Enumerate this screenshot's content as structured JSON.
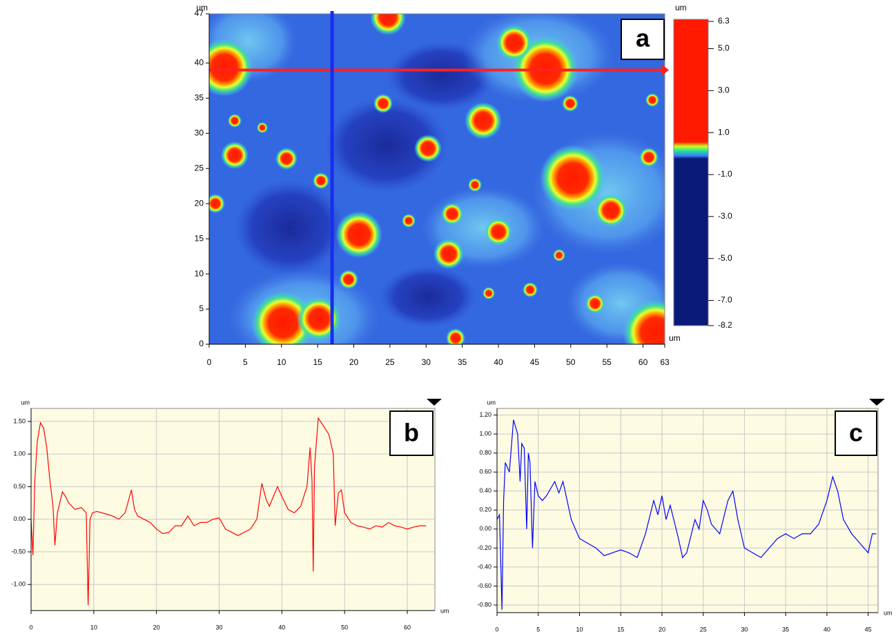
{
  "chart_data": [
    {
      "type": "heatmap",
      "label": "a",
      "x_unit": "um",
      "y_unit": "um",
      "xlim": [
        0,
        63
      ],
      "xticks": [
        0,
        5,
        10,
        15,
        20,
        25,
        30,
        35,
        40,
        45,
        50,
        55,
        60,
        63
      ],
      "ylim": [
        0,
        47
      ],
      "yticks": [
        0,
        5,
        10,
        15,
        20,
        25,
        30,
        35,
        40,
        47
      ],
      "grid": false,
      "lines": [
        {
          "color": "#ff2020",
          "y": 39
        },
        {
          "color": "#1a2cf0",
          "x": 17
        }
      ],
      "colorbar": {
        "unit": "um",
        "lim": [
          -8.2,
          6.3
        ],
        "ticks": [
          6.3,
          {
            "value": 5,
            "label": "5.0"
          },
          {
            "value": 3,
            "label": "3.0"
          },
          {
            "value": 1,
            "label": "1.0"
          },
          {
            "value": -1,
            "label": "-1.0"
          },
          {
            "value": -3,
            "label": "-3.0"
          },
          {
            "value": -5,
            "label": "-5.0"
          },
          {
            "value": -7,
            "label": "-7.0"
          },
          -8.2
        ]
      }
    },
    {
      "type": "line",
      "label": "b",
      "x_unit": "um",
      "y_unit": "um",
      "xlim": [
        0,
        64.4
      ],
      "xticks": [
        0,
        10,
        20,
        30,
        40,
        50,
        60
      ],
      "ylim": [
        -1.4,
        1.7
      ],
      "yticks": [
        {
          "value": -1,
          "label": "-1.00"
        },
        {
          "value": -0.5,
          "label": "-0.50"
        },
        {
          "value": 0,
          "label": "0.00"
        },
        {
          "value": 0.5,
          "label": "0.50"
        },
        {
          "value": 1,
          "label": "1.00"
        },
        {
          "value": 1.5,
          "label": "1.50"
        }
      ],
      "grid": true,
      "series": [
        {
          "color": "#ff0000",
          "x": [
            0,
            0.3,
            0.6,
            1,
            1.5,
            2,
            2.5,
            3,
            3.5,
            3.8,
            4.2,
            5,
            5.5,
            6,
            7,
            8,
            8.8,
            9.1,
            9.4,
            9.8,
            10.5,
            12,
            13,
            14,
            15,
            16,
            16.5,
            17,
            18,
            19,
            20,
            21,
            22,
            23,
            24,
            25,
            26,
            27,
            28,
            29,
            30,
            31,
            32,
            33,
            34,
            35,
            36,
            36.8,
            37.5,
            38,
            39.3,
            40,
            41,
            42,
            43,
            44,
            44.5,
            44.8,
            45,
            45.2,
            45.8,
            46.5,
            47.5,
            48.2,
            48.5,
            49,
            49.5,
            50,
            51,
            52,
            53,
            54,
            55,
            56,
            57,
            58,
            59,
            60,
            61,
            62,
            63
          ],
          "values": [
            0,
            -0.55,
            0.6,
            1.2,
            1.48,
            1.4,
            1.1,
            0.6,
            0.2,
            -0.4,
            0.1,
            0.42,
            0.35,
            0.25,
            0.15,
            0.18,
            0.1,
            -1.32,
            0,
            0.1,
            0.12,
            0.08,
            0.05,
            0,
            0.1,
            0.45,
            0.15,
            0.05,
            0,
            -0.05,
            -0.15,
            -0.22,
            -0.2,
            -0.1,
            -0.1,
            0.05,
            -0.1,
            -0.05,
            -0.05,
            0,
            0.02,
            -0.15,
            -0.2,
            -0.25,
            -0.2,
            -0.15,
            0,
            0.55,
            0.3,
            0.2,
            0.5,
            0.35,
            0.15,
            0.1,
            0.2,
            0.5,
            1.1,
            0.6,
            -0.8,
            0.8,
            1.55,
            1.45,
            1.3,
            1,
            -0.1,
            0.4,
            0.45,
            0.1,
            -0.05,
            -0.1,
            -0.12,
            -0.15,
            -0.1,
            -0.12,
            -0.05,
            -0.1,
            -0.12,
            -0.15,
            -0.12,
            -0.1,
            -0.1
          ]
        }
      ]
    },
    {
      "type": "line",
      "label": "c",
      "x_unit": "um",
      "y_unit": "um",
      "xlim": [
        0,
        46.2
      ],
      "xticks": [
        0,
        5,
        10,
        15,
        20,
        25,
        30,
        35,
        40,
        45
      ],
      "ylim": [
        -0.88,
        1.27
      ],
      "yticks": [
        {
          "value": -0.8,
          "label": "-0.80"
        },
        {
          "value": -0.6,
          "label": "-0.60"
        },
        {
          "value": -0.4,
          "label": "-0.40"
        },
        {
          "value": -0.2,
          "label": "-0.20"
        },
        {
          "value": 0,
          "label": "0.00"
        },
        {
          "value": 0.2,
          "label": "0.20"
        },
        {
          "value": 0.4,
          "label": "0.40"
        },
        {
          "value": 0.6,
          "label": "0.60"
        },
        {
          "value": 0.8,
          "label": "0.80"
        },
        {
          "value": 1,
          "label": "1.00"
        },
        {
          "value": 1.2,
          "label": "1.20"
        }
      ],
      "grid": true,
      "series": [
        {
          "color": "#0000ff",
          "x": [
            0,
            0.3,
            0.5,
            0.6,
            0.8,
            1,
            1.5,
            2,
            2.5,
            2.8,
            3,
            3.3,
            3.6,
            3.8,
            4,
            4.3,
            4.6,
            5,
            5.5,
            6,
            7,
            7.5,
            8,
            8.5,
            9,
            10,
            11,
            12,
            13,
            14,
            15,
            16,
            17,
            18,
            19,
            19.5,
            20,
            20.5,
            21,
            22,
            22.5,
            23,
            24,
            24.5,
            25,
            25.5,
            26,
            27,
            28,
            28.6,
            29.2,
            30,
            31,
            32,
            33,
            34,
            35,
            36,
            37,
            38,
            39,
            40,
            40.7,
            41.3,
            42,
            43,
            44,
            45,
            45.5,
            46
          ],
          "values": [
            0.1,
            0.15,
            -0.5,
            -0.85,
            0.3,
            0.7,
            0.6,
            1.15,
            1,
            0.5,
            0.9,
            0.85,
            0,
            0.8,
            0.7,
            -0.2,
            0.5,
            0.35,
            0.3,
            0.35,
            0.5,
            0.38,
            0.5,
            0.3,
            0.1,
            -0.1,
            -0.15,
            -0.2,
            -0.28,
            -0.25,
            -0.22,
            -0.25,
            -0.3,
            -0.05,
            0.3,
            0.15,
            0.35,
            0.1,
            0.25,
            -0.1,
            -0.3,
            -0.25,
            0.1,
            0,
            0.3,
            0.2,
            0.05,
            -0.05,
            0.3,
            0.4,
            0.1,
            -0.2,
            -0.25,
            -0.3,
            -0.2,
            -0.1,
            -0.05,
            -0.1,
            -0.05,
            -0.05,
            0.05,
            0.3,
            0.55,
            0.4,
            0.1,
            -0.05,
            -0.15,
            -0.25,
            -0.05,
            -0.05
          ]
        }
      ]
    }
  ]
}
